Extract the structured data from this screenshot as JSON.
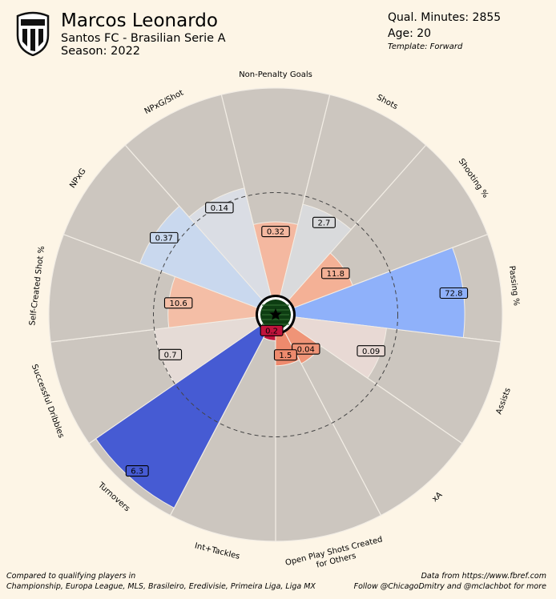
{
  "header": {
    "player_name": "Marcos Leonardo",
    "team_league": "Santos FC - Brasilian Serie A",
    "season": "Season: 2022",
    "minutes": "Qual. Minutes: 2855",
    "age": "Age: 20",
    "template": "Template: Forward"
  },
  "footer": {
    "left_line1": "Compared to qualifying players in",
    "left_line2": "Championship, Europa League, MLS, Brasileiro, Eredivisie, Primeira Liga, Liga MX",
    "right_line1": "Data from https://www.fbref.com",
    "right_line2": "Follow @ChicagoDmitry and @mclachbot for more"
  },
  "colors": {
    "background": "#fdf5e6",
    "slice_background": "#ccc6bf",
    "divider": "#f2ede5"
  },
  "chart_data": {
    "type": "polar-bar",
    "title": "",
    "scale": [
      0,
      100
    ],
    "reference_ring": 50,
    "metrics": [
      {
        "name": "Non-Penalty Goals",
        "label_lines": [
          "Non-Penalty Goals"
        ],
        "value": "0.32",
        "percentile": 36,
        "color": "#f4b8a0"
      },
      {
        "name": "Shots",
        "label_lines": [
          "Shots"
        ],
        "value": "2.7",
        "percentile": 46,
        "color": "#d9dadc"
      },
      {
        "name": "Shooting %",
        "label_lines": [
          "Shooting %"
        ],
        "value": "11.8",
        "percentile": 31,
        "color": "#f4b196"
      },
      {
        "name": "Passing %",
        "label_lines": [
          "Passing %"
        ],
        "value": "72.8",
        "percentile": 82,
        "color": "#8fb1fa"
      },
      {
        "name": "Assists",
        "label_lines": [
          "Assists"
        ],
        "value": "0.09",
        "percentile": 45,
        "color": "#e8d9d4"
      },
      {
        "name": "xA",
        "label_lines": [
          "xA"
        ],
        "value": "0.04",
        "percentile": 18,
        "color": "#ef9477"
      },
      {
        "name": "Open Play Shots Created for Others",
        "label_lines": [
          "Open Play Shots Created",
          "for Others"
        ],
        "value": "1.5",
        "percentile": 16,
        "color": "#ee8a6d"
      },
      {
        "name": "Int+Tackles",
        "label_lines": [
          "Int+Tackles"
        ],
        "value": "0.2",
        "percentile": 4,
        "color": "#c0143c"
      },
      {
        "name": "Turnovers",
        "label_lines": [
          "Turnovers"
        ],
        "value": "6.3",
        "percentile": 96,
        "color": "#465bd3"
      },
      {
        "name": "Successful Dribbles",
        "label_lines": [
          "Successful Dribbles"
        ],
        "value": "0.7",
        "percentile": 50,
        "color": "#e5dbd6"
      },
      {
        "name": "Self-Created Shot %",
        "label_lines": [
          "Self-Created Shot %"
        ],
        "value": "10.6",
        "percentile": 43,
        "color": "#f4bea6"
      },
      {
        "name": "NPxG",
        "label_lines": [
          "NPxG"
        ],
        "value": "0.37",
        "percentile": 61,
        "color": "#c9d8ee"
      },
      {
        "name": "NPxG/Shot",
        "label_lines": [
          "NPxG/Shot"
        ],
        "value": "0.14",
        "percentile": 54,
        "color": "#dadde4"
      }
    ]
  }
}
